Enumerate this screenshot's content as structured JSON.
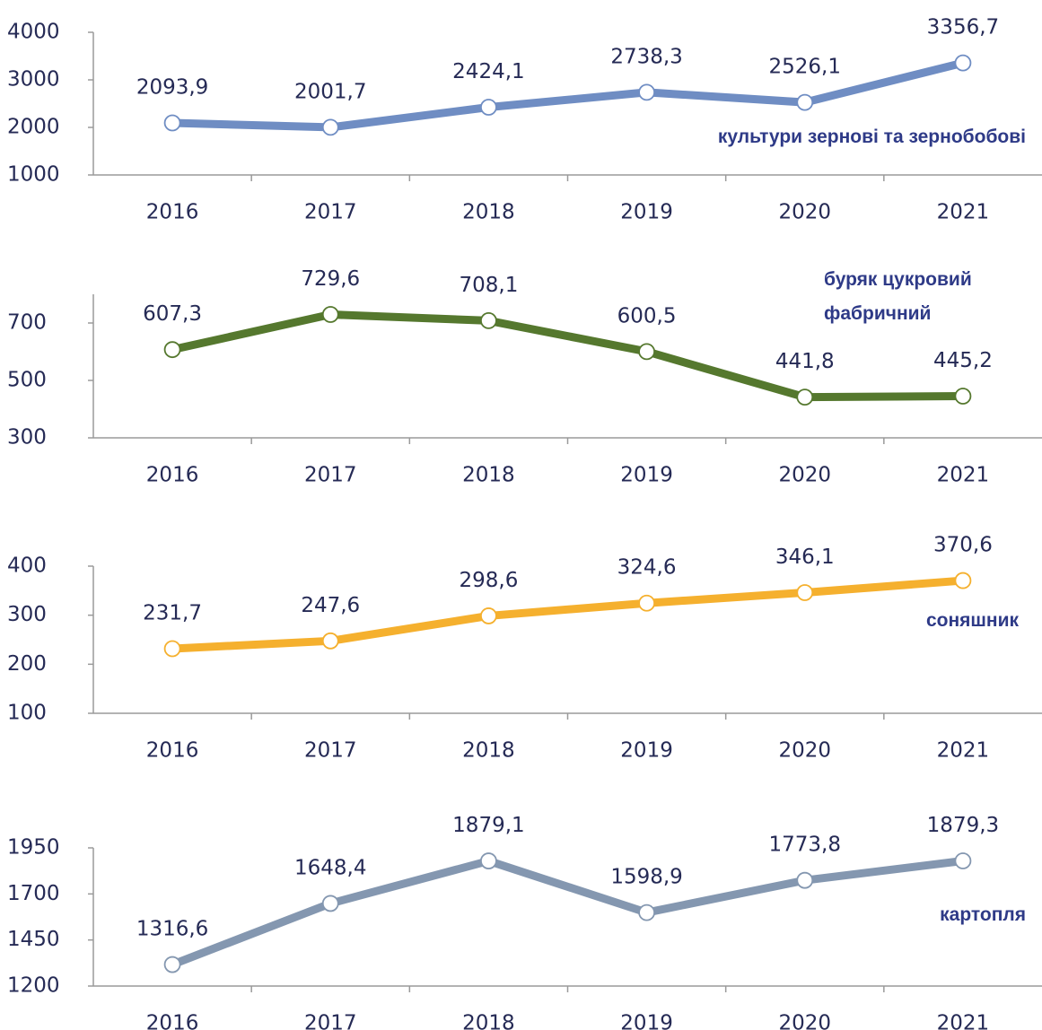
{
  "chart_data": [
    {
      "type": "line",
      "categories": [
        "2016",
        "2017",
        "2018",
        "2019",
        "2020",
        "2021"
      ],
      "series": [
        {
          "name": "культури зернові та зернобобові",
          "color": "#6f8dc3",
          "values": [
            2093.9,
            2001.7,
            2424.1,
            2738.3,
            2526.1,
            3356.7
          ],
          "value_labels": [
            "2093,9",
            "2001,7",
            "2424,1",
            "2738,3",
            "2526,1",
            "3356,7"
          ]
        }
      ],
      "ylim": [
        1000,
        4000
      ],
      "yticks": [
        1000,
        2000,
        3000,
        4000
      ]
    },
    {
      "type": "line",
      "categories": [
        "2016",
        "2017",
        "2018",
        "2019",
        "2020",
        "2021"
      ],
      "series": [
        {
          "name": "буряк цукровий фабричний",
          "color": "#55782e",
          "values": [
            607.3,
            729.6,
            708.1,
            600.5,
            441.8,
            445.2
          ],
          "value_labels": [
            "607,3",
            "729,6",
            "708,1",
            "600,5",
            "441,8",
            "445,2"
          ]
        }
      ],
      "ylim": [
        300,
        800
      ],
      "yticks": [
        300,
        500,
        700
      ]
    },
    {
      "type": "line",
      "categories": [
        "2016",
        "2017",
        "2018",
        "2019",
        "2020",
        "2021"
      ],
      "series": [
        {
          "name": "соняшник",
          "color": "#f5b02e",
          "values": [
            231.7,
            247.6,
            298.6,
            324.6,
            346.1,
            370.6
          ],
          "value_labels": [
            "231,7",
            "247,6",
            "298,6",
            "324,6",
            "346,1",
            "370,6"
          ]
        }
      ],
      "ylim": [
        100,
        400
      ],
      "yticks": [
        100,
        200,
        300,
        400
      ]
    },
    {
      "type": "line",
      "categories": [
        "2016",
        "2017",
        "2018",
        "2019",
        "2020",
        "2021"
      ],
      "series": [
        {
          "name": "картопля",
          "color": "#8497b0",
          "values": [
            1316.6,
            1648.4,
            1879.1,
            1598.9,
            1773.8,
            1879.3
          ],
          "value_labels": [
            "1316,6",
            "1648,4",
            "1879,1",
            "1598,9",
            "1773,8",
            "1879,3"
          ]
        }
      ],
      "ylim": [
        1200,
        1950
      ],
      "yticks": [
        1200,
        1450,
        1700,
        1950
      ]
    }
  ]
}
